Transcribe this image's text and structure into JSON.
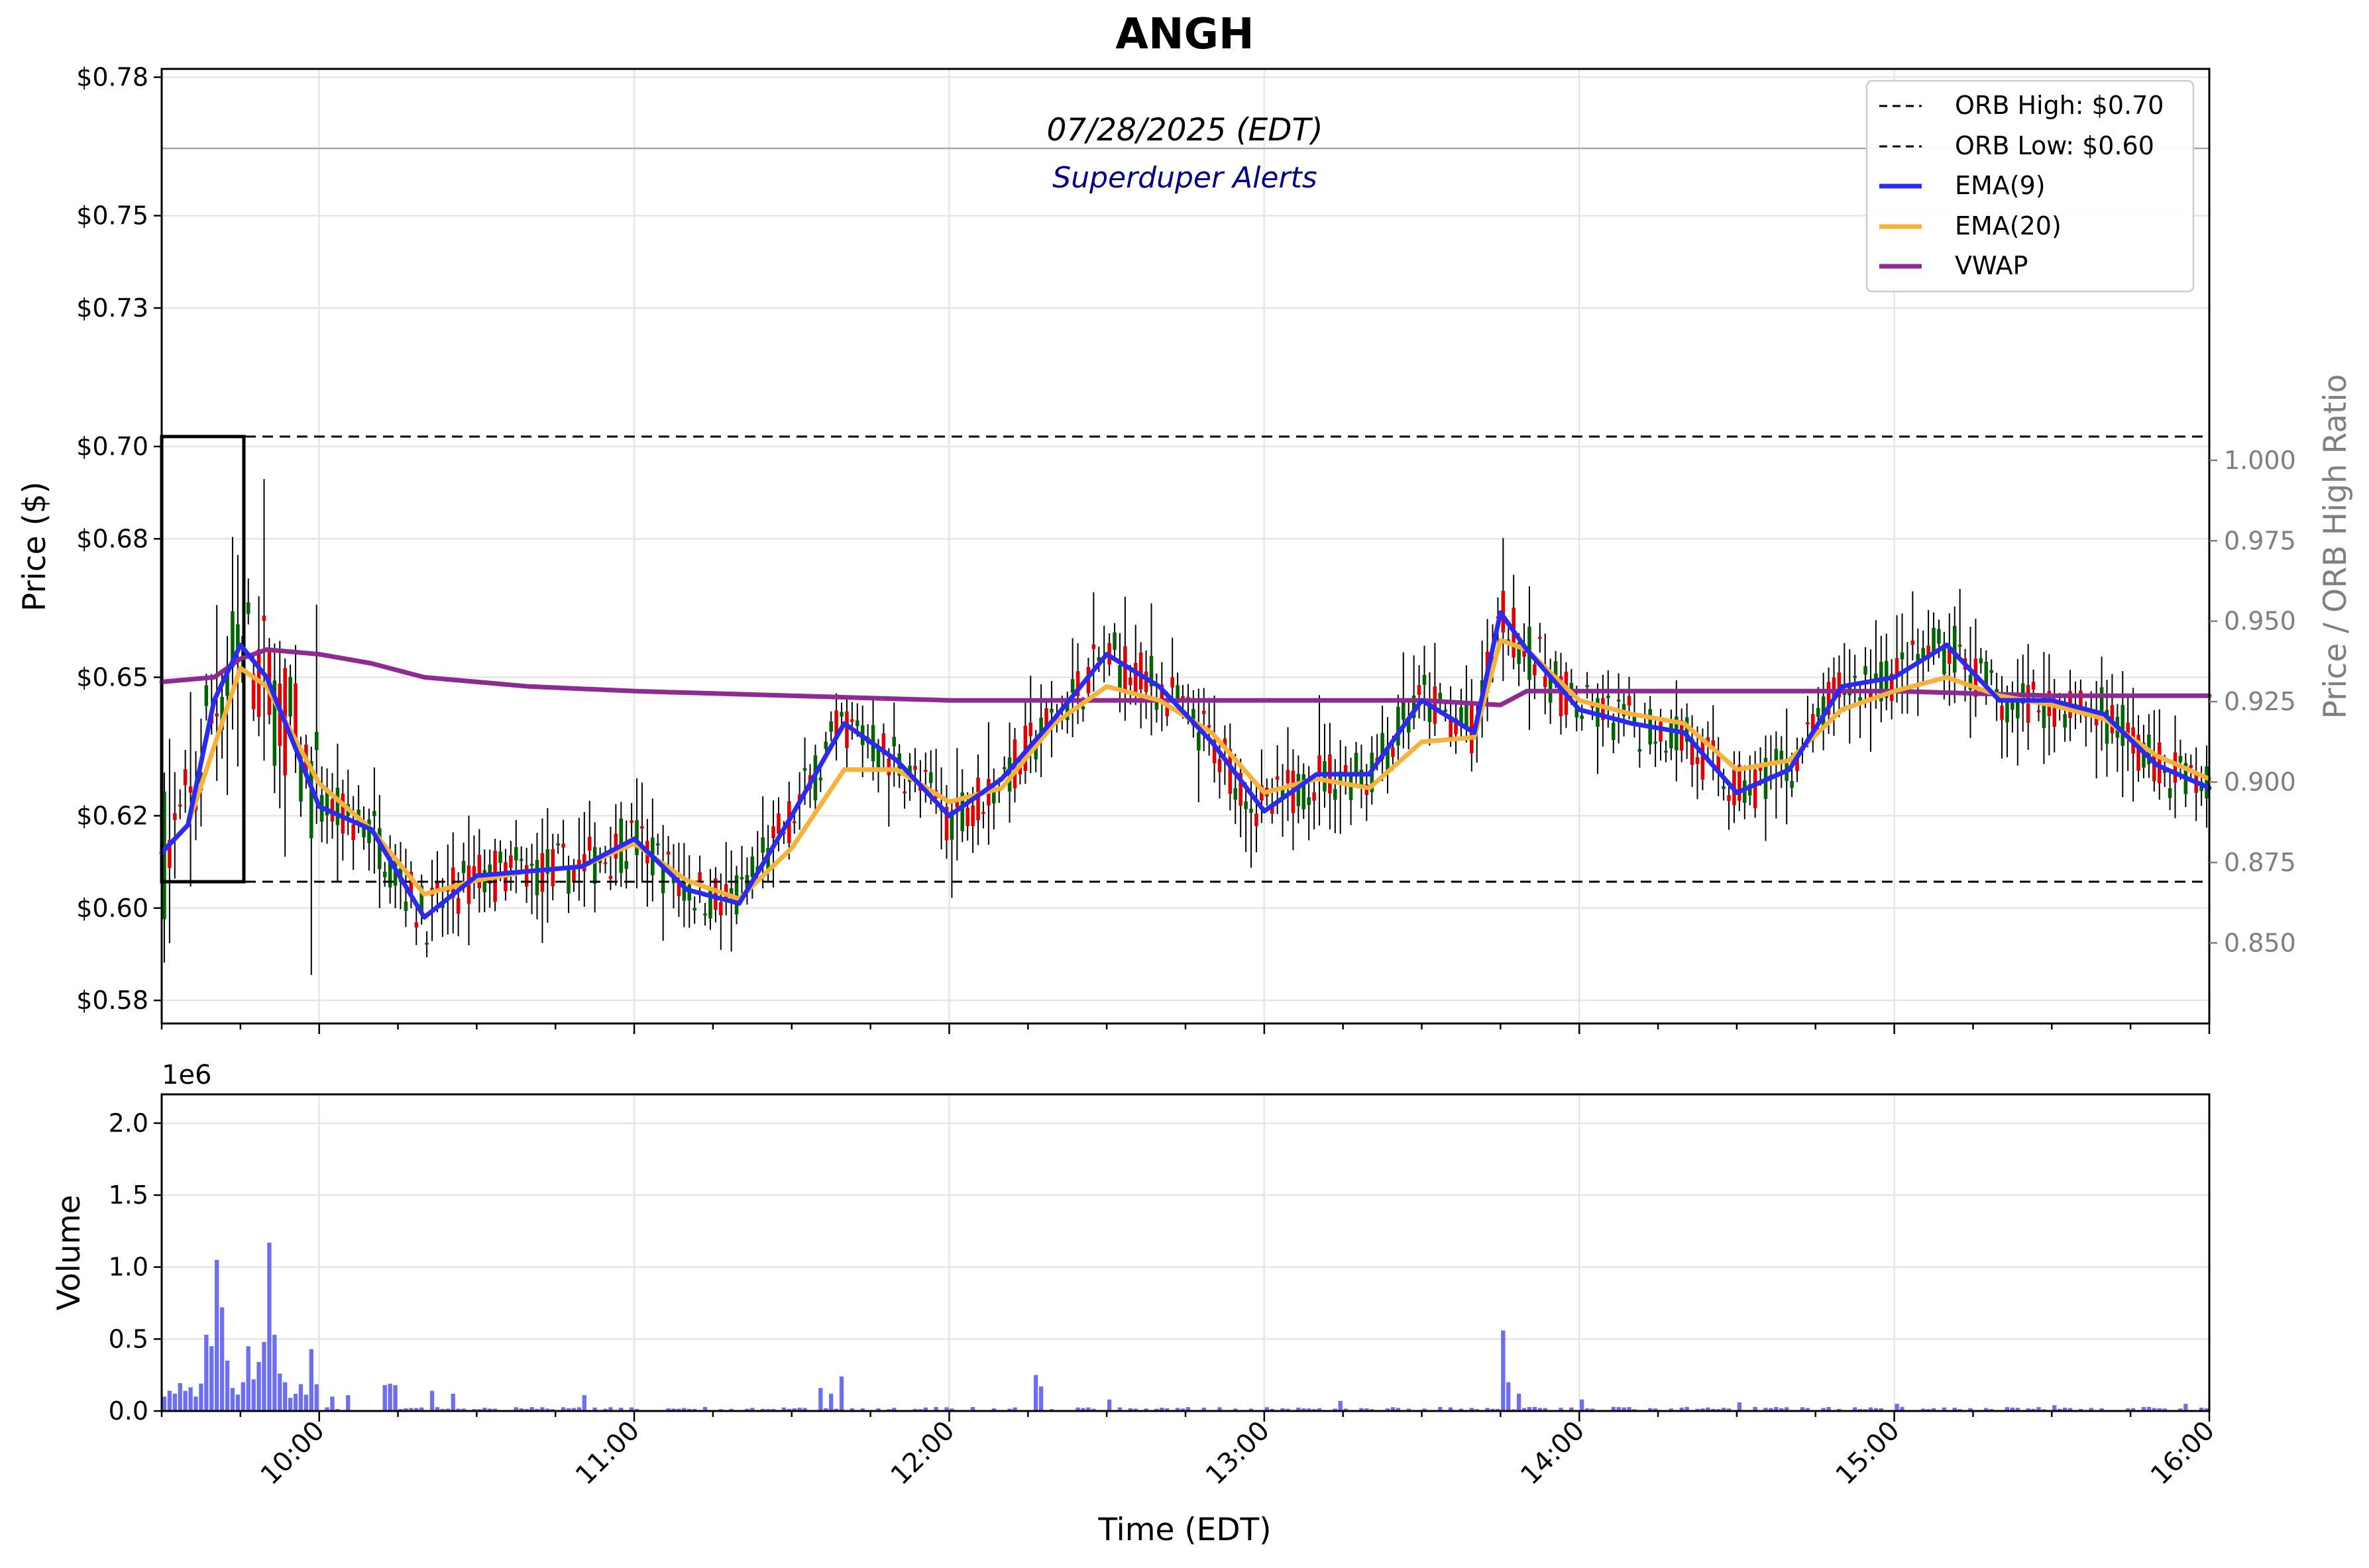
{
  "title": "ANGH",
  "subtitle": "07/28/2025 (EDT)",
  "watermark": "Superduper Alerts",
  "colors": {
    "ema9": "#2b2bf0",
    "ema20": "#f7b23b",
    "vwap": "#8e2a94",
    "up": "#006400",
    "down": "#e00000",
    "volume": "#5555ee",
    "right_axis": "#7f7f7f",
    "watermark": "#00008b"
  },
  "chart_data": [
    {
      "type": "candlestick",
      "name": "price",
      "ylabel": "Price ($)",
      "ylim": [
        0.575,
        0.7818
      ],
      "y_ticks": [
        0.58,
        0.6,
        0.62,
        0.65,
        0.68,
        0.7,
        0.73,
        0.75,
        0.78
      ],
      "y_tick_labels": [
        "$0.58",
        "$0.60",
        "$0.62",
        "$0.65",
        "$0.68",
        "$0.70",
        "$0.73",
        "$0.75",
        "$0.78"
      ],
      "xlim": [
        "09:30",
        "16:00"
      ],
      "x_tick_labels": [
        "10:00",
        "11:00",
        "12:00",
        "13:00",
        "14:00",
        "15:00",
        "16:00"
      ],
      "grid": true,
      "legend_location": "top-right",
      "right_axis": {
        "label": "Price / ORB High Ratio",
        "ticks": [
          0.85,
          0.875,
          0.9,
          0.925,
          0.95,
          0.975,
          1.0
        ],
        "tick_labels": [
          "0.850",
          "0.875",
          "0.900",
          "0.925",
          "0.950",
          "0.975",
          "1.000"
        ],
        "reference_line": 1.0
      },
      "orb": {
        "high": 0.697,
        "low": 0.601,
        "high_label": "ORB High: $0.70",
        "low_label": "ORB Low: $0.60",
        "window": [
          "09:30",
          "09:45"
        ]
      },
      "series": [
        {
          "name": "EMA(9)",
          "x": [
            "09:30",
            "09:35",
            "09:40",
            "09:45",
            "09:50",
            "10:00",
            "10:10",
            "10:20",
            "10:30",
            "10:40",
            "10:50",
            "11:00",
            "11:10",
            "11:20",
            "11:30",
            "11:40",
            "11:50",
            "12:00",
            "12:10",
            "12:20",
            "12:30",
            "12:40",
            "12:50",
            "13:00",
            "13:10",
            "13:20",
            "13:30",
            "13:40",
            "13:45",
            "13:50",
            "14:00",
            "14:10",
            "14:20",
            "14:30",
            "14:40",
            "14:50",
            "15:00",
            "15:10",
            "15:20",
            "15:30",
            "15:40",
            "15:50",
            "16:00"
          ],
          "values": [
            0.612,
            0.618,
            0.645,
            0.657,
            0.65,
            0.622,
            0.617,
            0.598,
            0.607,
            0.608,
            0.609,
            0.615,
            0.604,
            0.601,
            0.62,
            0.64,
            0.632,
            0.62,
            0.628,
            0.641,
            0.655,
            0.648,
            0.636,
            0.621,
            0.629,
            0.629,
            0.645,
            0.638,
            0.664,
            0.656,
            0.643,
            0.64,
            0.638,
            0.625,
            0.63,
            0.648,
            0.65,
            0.657,
            0.645,
            0.645,
            0.642,
            0.631,
            0.626
          ]
        },
        {
          "name": "EMA(20)",
          "x": [
            "09:30",
            "09:35",
            "09:40",
            "09:45",
            "09:50",
            "10:00",
            "10:10",
            "10:20",
            "10:30",
            "10:40",
            "10:50",
            "11:00",
            "11:10",
            "11:20",
            "11:30",
            "11:40",
            "11:50",
            "12:00",
            "12:10",
            "12:20",
            "12:30",
            "12:40",
            "12:50",
            "13:00",
            "13:10",
            "13:20",
            "13:30",
            "13:40",
            "13:45",
            "13:50",
            "14:00",
            "14:10",
            "14:20",
            "14:30",
            "14:40",
            "14:50",
            "15:00",
            "15:10",
            "15:20",
            "15:30",
            "15:40",
            "15:50",
            "16:00"
          ],
          "values": [
            0.612,
            0.618,
            0.635,
            0.652,
            0.648,
            0.627,
            0.617,
            0.603,
            0.606,
            0.608,
            0.609,
            0.614,
            0.606,
            0.602,
            0.613,
            0.63,
            0.63,
            0.623,
            0.626,
            0.64,
            0.648,
            0.645,
            0.638,
            0.625,
            0.628,
            0.626,
            0.636,
            0.637,
            0.658,
            0.656,
            0.645,
            0.642,
            0.64,
            0.63,
            0.632,
            0.643,
            0.647,
            0.65,
            0.646,
            0.644,
            0.641,
            0.633,
            0.628
          ]
        },
        {
          "name": "VWAP",
          "x": [
            "09:30",
            "09:40",
            "09:45",
            "09:50",
            "10:00",
            "10:10",
            "10:20",
            "10:40",
            "11:00",
            "11:30",
            "12:00",
            "12:30",
            "13:00",
            "13:30",
            "13:45",
            "13:50",
            "14:00",
            "14:30",
            "15:00",
            "15:30",
            "16:00"
          ],
          "values": [
            0.649,
            0.65,
            0.654,
            0.656,
            0.655,
            0.653,
            0.65,
            0.648,
            0.647,
            0.646,
            0.645,
            0.645,
            0.645,
            0.645,
            0.644,
            0.647,
            0.647,
            0.647,
            0.647,
            0.646,
            0.646
          ]
        }
      ]
    },
    {
      "type": "bar",
      "name": "volume",
      "ylabel": "Volume",
      "y_scale_label": "1e6",
      "ylim": [
        0,
        2.2
      ],
      "y_ticks": [
        0.0,
        0.5,
        1.0,
        1.5,
        2.0
      ],
      "y_tick_labels": [
        "0.0",
        "0.5",
        "1.0",
        "1.5",
        "2.0"
      ],
      "xlabel": "Time (EDT)",
      "x_tick_labels": [
        "10:00",
        "11:00",
        "12:00",
        "13:00",
        "14:00",
        "15:00",
        "16:00"
      ],
      "peaks": [
        {
          "x": "09:30",
          "value": 0.1
        },
        {
          "x": "09:32",
          "value": 0.12
        },
        {
          "x": "09:34",
          "value": 0.14
        },
        {
          "x": "09:36",
          "value": 0.1
        },
        {
          "x": "09:38",
          "value": 0.53
        },
        {
          "x": "09:39",
          "value": 0.45
        },
        {
          "x": "09:40",
          "value": 1.05
        },
        {
          "x": "09:41",
          "value": 0.72
        },
        {
          "x": "09:42",
          "value": 0.35
        },
        {
          "x": "09:43",
          "value": 0.16
        },
        {
          "x": "09:45",
          "value": 0.2
        },
        {
          "x": "09:46",
          "value": 0.45
        },
        {
          "x": "09:47",
          "value": 0.22
        },
        {
          "x": "09:48",
          "value": 0.34
        },
        {
          "x": "09:49",
          "value": 0.48
        },
        {
          "x": "09:50",
          "value": 1.17
        },
        {
          "x": "09:51",
          "value": 0.53
        },
        {
          "x": "09:52",
          "value": 0.26
        },
        {
          "x": "09:53",
          "value": 0.2
        },
        {
          "x": "09:55",
          "value": 0.12
        },
        {
          "x": "09:58",
          "value": 0.43
        },
        {
          "x": "10:02",
          "value": 0.1
        },
        {
          "x": "10:05",
          "value": 0.11
        },
        {
          "x": "10:12",
          "value": 0.18
        },
        {
          "x": "10:13",
          "value": 0.19
        },
        {
          "x": "10:14",
          "value": 0.18
        },
        {
          "x": "10:21",
          "value": 0.14
        },
        {
          "x": "10:25",
          "value": 0.12
        },
        {
          "x": "10:50",
          "value": 0.11
        },
        {
          "x": "11:35",
          "value": 0.16
        },
        {
          "x": "11:37",
          "value": 0.12
        },
        {
          "x": "11:39",
          "value": 0.24
        },
        {
          "x": "12:16",
          "value": 0.25
        },
        {
          "x": "12:17",
          "value": 0.17
        },
        {
          "x": "12:30",
          "value": 0.08
        },
        {
          "x": "13:14",
          "value": 0.07
        },
        {
          "x": "13:45",
          "value": 0.56
        },
        {
          "x": "13:46",
          "value": 0.2
        },
        {
          "x": "13:48",
          "value": 0.12
        },
        {
          "x": "14:00",
          "value": 0.08
        },
        {
          "x": "14:30",
          "value": 0.06
        },
        {
          "x": "15:00",
          "value": 0.05
        },
        {
          "x": "15:30",
          "value": 0.04
        },
        {
          "x": "15:55",
          "value": 0.05
        },
        {
          "x": "16:00",
          "value": 0.04
        }
      ]
    }
  ]
}
